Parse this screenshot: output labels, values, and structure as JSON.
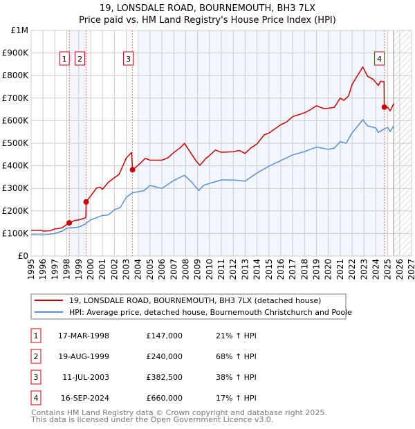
{
  "chart_data": {
    "type": "line",
    "title": "19, LONSDALE ROAD, BOURNEMOUTH, BH3 7LX",
    "subtitle": "Price paid vs. HM Land Registry's House Price Index (HPI)",
    "xlabel": "",
    "ylabel": "",
    "xlim": [
      1995,
      2027
    ],
    "ylim": [
      0,
      1000000
    ],
    "grid": true,
    "x_ticks": [
      "1995",
      "1996",
      "1997",
      "1998",
      "1999",
      "2000",
      "2001",
      "2002",
      "2003",
      "2004",
      "2005",
      "2006",
      "2007",
      "2008",
      "2009",
      "2010",
      "2011",
      "2012",
      "2013",
      "2014",
      "2015",
      "2016",
      "2017",
      "2018",
      "2019",
      "2020",
      "2021",
      "2022",
      "2023",
      "2024",
      "2025",
      "2026",
      "2027"
    ],
    "y_ticks": [
      {
        "value": 0,
        "label": "£0"
      },
      {
        "value": 100000,
        "label": "£100K"
      },
      {
        "value": 200000,
        "label": "£200K"
      },
      {
        "value": 300000,
        "label": "£300K"
      },
      {
        "value": 400000,
        "label": "£400K"
      },
      {
        "value": 500000,
        "label": "£500K"
      },
      {
        "value": 600000,
        "label": "£600K"
      },
      {
        "value": 700000,
        "label": "£700K"
      },
      {
        "value": 800000,
        "label": "£800K"
      },
      {
        "value": 900000,
        "label": "£900K"
      },
      {
        "value": 1000000,
        "label": "£1M"
      }
    ],
    "shaded_ranges": [
      [
        1998.21,
        1999.63
      ],
      [
        2004.0,
        2024.71
      ]
    ],
    "forecast_hatch_from": 2025.5,
    "series": [
      {
        "name": "19, LONSDALE ROAD, BOURNEMOUTH, BH3 7LX (detached house)",
        "color": "#cc0000",
        "points": [
          [
            1995,
            114000
          ],
          [
            1995.9,
            114000
          ],
          [
            1996,
            110000
          ],
          [
            1996.6,
            112000
          ],
          [
            1997,
            120000
          ],
          [
            1997.6,
            125000
          ],
          [
            1998,
            140000
          ],
          [
            1998.21,
            147000
          ],
          [
            1998.7,
            158000
          ],
          [
            1999,
            160000
          ],
          [
            1999.5,
            168000
          ],
          [
            1999.6,
            170000
          ],
          [
            1999.63,
            240000
          ],
          [
            2000,
            266000
          ],
          [
            2000.5,
            301000
          ],
          [
            2000.8,
            305000
          ],
          [
            2001,
            296000
          ],
          [
            2001.5,
            327000
          ],
          [
            2002,
            347000
          ],
          [
            2002.4,
            362000
          ],
          [
            2003,
            434000
          ],
          [
            2003.45,
            459000
          ],
          [
            2003.53,
            382500
          ],
          [
            2004,
            402000
          ],
          [
            2004.6,
            433000
          ],
          [
            2005,
            425000
          ],
          [
            2005.5,
            425000
          ],
          [
            2006,
            425000
          ],
          [
            2006.5,
            435000
          ],
          [
            2007,
            459000
          ],
          [
            2007.5,
            478000
          ],
          [
            2007.9,
            499000
          ],
          [
            2008.5,
            451000
          ],
          [
            2008.9,
            420000
          ],
          [
            2009.2,
            402000
          ],
          [
            2009.7,
            433000
          ],
          [
            2010,
            445000
          ],
          [
            2010.5,
            470000
          ],
          [
            2011,
            460000
          ],
          [
            2012,
            462000
          ],
          [
            2012.5,
            468000
          ],
          [
            2013,
            455000
          ],
          [
            2013.5,
            480000
          ],
          [
            2014,
            497000
          ],
          [
            2014.6,
            537000
          ],
          [
            2015,
            545000
          ],
          [
            2016,
            582000
          ],
          [
            2016.5,
            595000
          ],
          [
            2017,
            618000
          ],
          [
            2018,
            635000
          ],
          [
            2018.5,
            649000
          ],
          [
            2019,
            666000
          ],
          [
            2019.6,
            654000
          ],
          [
            2020,
            655000
          ],
          [
            2020.5,
            659000
          ],
          [
            2021,
            700000
          ],
          [
            2021.3,
            690000
          ],
          [
            2021.7,
            710000
          ],
          [
            2022,
            761000
          ],
          [
            2022.9,
            838000
          ],
          [
            2023.3,
            797000
          ],
          [
            2023.8,
            782000
          ],
          [
            2024.2,
            756000
          ],
          [
            2024.4,
            775000
          ],
          [
            2024.69,
            772000
          ],
          [
            2024.71,
            660000
          ],
          [
            2025,
            659000
          ],
          [
            2025.2,
            643000
          ],
          [
            2025.5,
            676000
          ]
        ]
      },
      {
        "name": "HPI: Average price, detached house, Bournemouth Christchurch and Poole",
        "color": "#5b8fd4",
        "points": [
          [
            1995,
            95000
          ],
          [
            1996,
            93000
          ],
          [
            1997,
            100000
          ],
          [
            1997.6,
            110000
          ],
          [
            1998,
            123000
          ],
          [
            1999,
            128000
          ],
          [
            1999.5,
            140000
          ],
          [
            2000,
            160000
          ],
          [
            2001,
            180000
          ],
          [
            2001.5,
            182000
          ],
          [
            2002,
            205000
          ],
          [
            2002.5,
            215000
          ],
          [
            2003,
            260000
          ],
          [
            2003.5,
            280000
          ],
          [
            2004.5,
            290000
          ],
          [
            2005,
            313000
          ],
          [
            2006,
            300000
          ],
          [
            2007,
            335000
          ],
          [
            2007.9,
            358000
          ],
          [
            2008.5,
            328000
          ],
          [
            2009.1,
            290000
          ],
          [
            2009.5,
            313000
          ],
          [
            2010,
            322000
          ],
          [
            2011,
            337000
          ],
          [
            2012,
            337000
          ],
          [
            2013,
            332000
          ],
          [
            2014,
            368000
          ],
          [
            2015,
            398000
          ],
          [
            2016,
            423000
          ],
          [
            2017,
            448000
          ],
          [
            2018,
            463000
          ],
          [
            2019,
            483000
          ],
          [
            2020,
            473000
          ],
          [
            2020.5,
            478000
          ],
          [
            2021,
            507000
          ],
          [
            2021.5,
            500000
          ],
          [
            2022,
            546000
          ],
          [
            2022.9,
            604000
          ],
          [
            2023.3,
            577000
          ],
          [
            2024,
            567000
          ],
          [
            2024.2,
            548000
          ],
          [
            2024.7,
            563000
          ],
          [
            2025,
            570000
          ],
          [
            2025.2,
            552000
          ],
          [
            2025.5,
            577000
          ]
        ]
      }
    ],
    "sales": [
      {
        "num": "1",
        "date": "17-MAR-1998",
        "x": 1998.21,
        "price": 147000,
        "price_label": "£147,000",
        "hpi": "21% ↑ HPI"
      },
      {
        "num": "2",
        "date": "19-AUG-1999",
        "x": 1999.63,
        "price": 240000,
        "price_label": "£240,000",
        "hpi": "68% ↑ HPI"
      },
      {
        "num": "3",
        "date": "11-JUL-2003",
        "x": 2003.53,
        "price": 382500,
        "price_label": "£382,500",
        "hpi": "38% ↑ HPI"
      },
      {
        "num": "4",
        "date": "16-SEP-2024",
        "x": 2024.71,
        "price": 660000,
        "price_label": "£660,000",
        "hpi": "17% ↑ HPI"
      }
    ],
    "legend_position": "below"
  },
  "footer": {
    "line1": "Contains HM Land Registry data © Crown copyright and database right 2025.",
    "line2": "This data is licensed under the Open Government Licence v3.0."
  }
}
